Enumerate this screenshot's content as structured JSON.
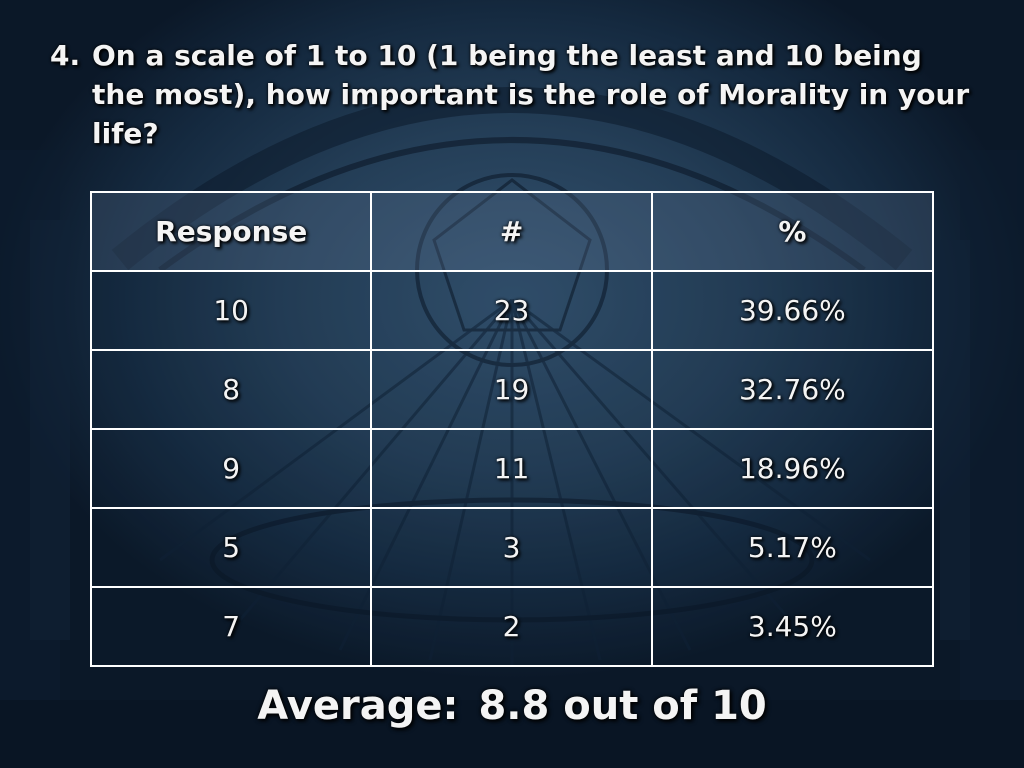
{
  "question": {
    "number": "4.",
    "text": "On a scale of 1 to 10 (1 being the least and 10 being the most), how important is the role of Morality in your life?"
  },
  "table": {
    "headers": [
      "Response",
      "#",
      "%"
    ],
    "rows": [
      [
        "10",
        "23",
        "39.66%"
      ],
      [
        "8",
        "19",
        "32.76%"
      ],
      [
        "9",
        "11",
        "18.96%"
      ],
      [
        "5",
        "3",
        "5.17%"
      ],
      [
        "7",
        "2",
        "3.45%"
      ]
    ]
  },
  "summary": {
    "label": "Average:",
    "value": "8.8 out of 10"
  },
  "colors": {
    "background": "#1b3450",
    "text": "#f4f4f4",
    "grid": "#ffffff"
  }
}
